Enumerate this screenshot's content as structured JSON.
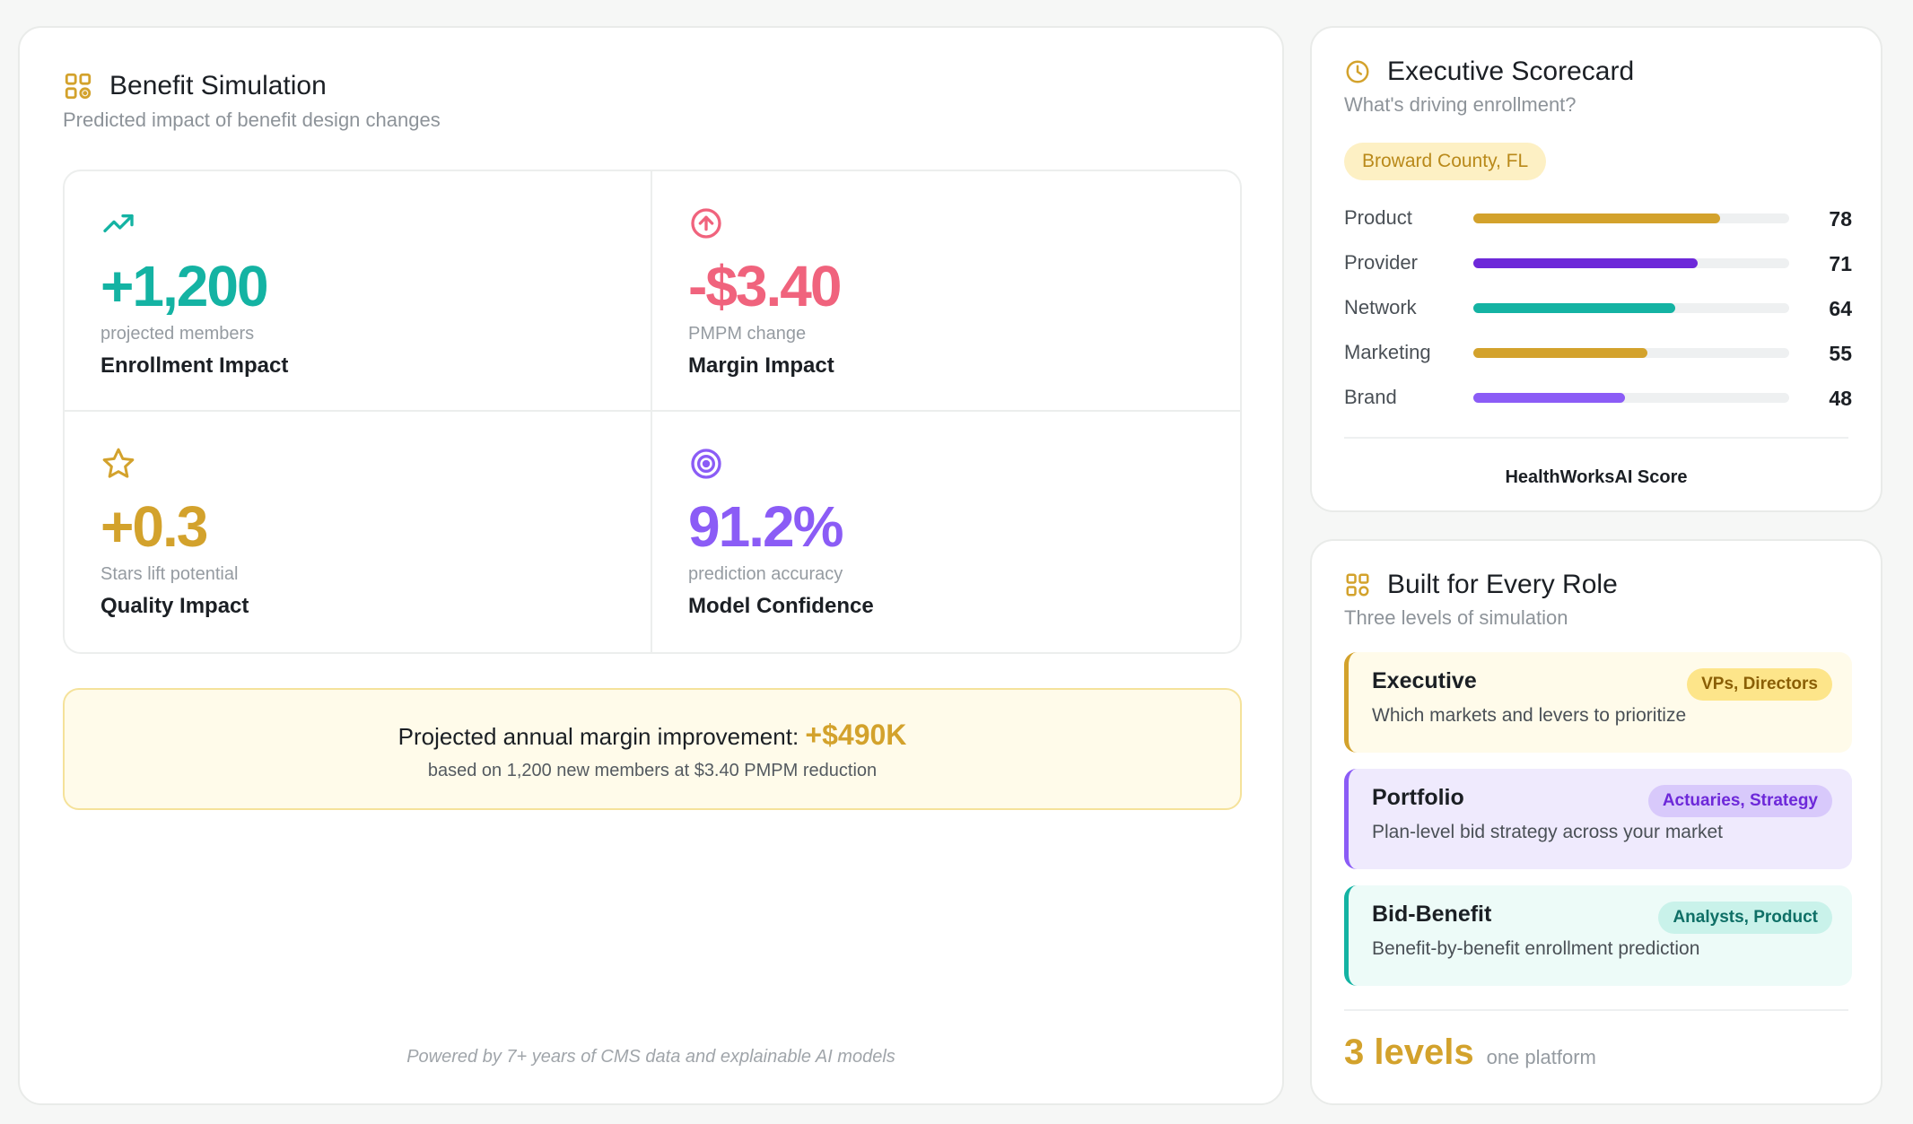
{
  "simulation": {
    "title": "Benefit Simulation",
    "subtitle": "Predicted impact of benefit design changes",
    "metrics": [
      {
        "icon": "trending-up-icon",
        "value": "+1,200",
        "caption": "projected members",
        "label": "Enrollment Impact",
        "color": "#14b3a3"
      },
      {
        "icon": "arrow-up-circle-icon",
        "value": "-$3.40",
        "caption": "PMPM change",
        "label": "Margin Impact",
        "color": "#f0637d"
      },
      {
        "icon": "star-icon",
        "value": "+0.3",
        "caption": "Stars lift potential",
        "label": "Quality Impact",
        "color": "#d3a22c"
      },
      {
        "icon": "target-icon",
        "value": "91.2%",
        "caption": "prediction accuracy",
        "label": "Model Confidence",
        "color": "#8b5cf6"
      }
    ],
    "banner": {
      "text": "Projected annual margin improvement:",
      "amount": "+$490K",
      "sub": "based on 1,200 new members at $3.40 PMPM reduction"
    },
    "footer": "Powered by 7+ years of CMS data and explainable AI models"
  },
  "scorecard": {
    "title": "Executive Scorecard",
    "subtitle": "What's driving enrollment?",
    "county": "Broward County, FL",
    "rows": [
      {
        "name": "Product",
        "value": 78,
        "color": "#d3a22c"
      },
      {
        "name": "Provider",
        "value": 71,
        "color": "#6d28d9"
      },
      {
        "name": "Network",
        "value": 64,
        "color": "#14b3a3"
      },
      {
        "name": "Marketing",
        "value": 55,
        "color": "#d3a22c"
      },
      {
        "name": "Brand",
        "value": 48,
        "color": "#8b5cf6"
      }
    ],
    "footer": "HealthWorksAI Score"
  },
  "roles": {
    "title": "Built for Every Role",
    "subtitle": "Three levels of simulation",
    "items": [
      {
        "name": "Executive",
        "badge": "VPs, Directors",
        "desc": "Which markets and levers to prioritize",
        "bg": "#fffbea",
        "border": "#d3a22c",
        "badge_bg": "#fde58a",
        "badge_color": "#8a5f05"
      },
      {
        "name": "Portfolio",
        "badge": "Actuaries, Strategy",
        "desc": "Plan-level bid strategy across your market",
        "bg": "#efeafd",
        "border": "#8b5cf6",
        "badge_bg": "#d8c9fb",
        "badge_color": "#6d28d9"
      },
      {
        "name": "Bid-Benefit",
        "badge": "Analysts, Product",
        "desc": "Benefit-by-benefit enrollment prediction",
        "bg": "#edfbf8",
        "border": "#14b3a3",
        "badge_bg": "#c9f2ea",
        "badge_color": "#0e6f66"
      }
    ],
    "footer_big": "3 levels",
    "footer_small": "one platform"
  }
}
